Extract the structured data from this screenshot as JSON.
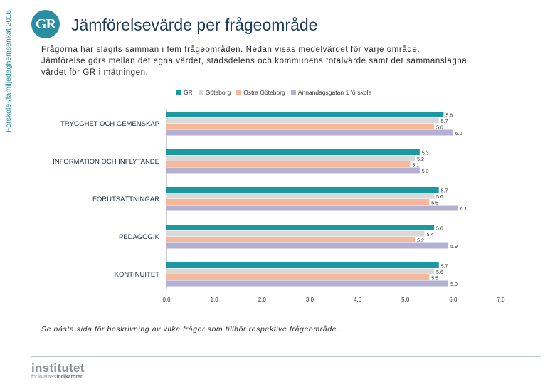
{
  "side_label": "Förskole-/familjedaghemsenkät 2016",
  "logo_text": "GR",
  "title": "Jämförelsevärde per frågeområde",
  "intro_lines": [
    "Frågorna har slagits samman i fem frågeområden. Nedan visas medelvärdet för varje område.",
    "Jämförelse görs mellan det egna värdet, stadsdelens och kommunens totalvärde samt det sammanslagna",
    "värdet för GR i mätningen."
  ],
  "footnote": "Se nästa sida för beskrivning av vilka frågor som tillhör respektive frågeområde.",
  "brand": {
    "name": "institutet",
    "sub_prefix": "för kvalitets",
    "sub_highlight": "indikatorer"
  },
  "chart_data": {
    "type": "bar",
    "orientation": "horizontal",
    "categories": [
      "TRYGGHET OCH GEMENSKAP",
      "INFORMATION OCH INFLYTANDE",
      "FÖRUTSÄTTNINGAR",
      "PEDAGOGIK",
      "KONTINUITET"
    ],
    "series": [
      {
        "name": "GR",
        "color": "#1a9aa0",
        "values": [
          5.8,
          5.3,
          5.7,
          5.6,
          5.7
        ],
        "labels": [
          "5.8",
          "5.3",
          "5.7",
          "5.6",
          "5.7"
        ]
      },
      {
        "name": "Göteborg",
        "color": "#d9d9d9",
        "values": [
          5.7,
          5.2,
          5.6,
          5.4,
          5.6
        ],
        "labels": [
          "5.7",
          "5.2",
          "5.6",
          "5.4",
          "5.6"
        ]
      },
      {
        "name": "Östra Göteborg",
        "color": "#f7b89a",
        "values": [
          5.6,
          5.1,
          5.5,
          5.2,
          5.5
        ],
        "labels": [
          "5.6",
          "5.1",
          "5.5",
          "5.2",
          "5.5"
        ]
      },
      {
        "name": "Annandagsgatan 1 förskola",
        "color": "#b3b0d4",
        "values": [
          6.0,
          5.3,
          6.1,
          5.9,
          5.9
        ],
        "labels": [
          "6.0",
          "5.3",
          "6.1",
          "5.9",
          "5.9"
        ]
      }
    ],
    "xlim": [
      0,
      7
    ],
    "ticks": [
      0,
      1,
      2,
      3,
      4,
      5,
      6,
      7
    ],
    "tick_labels": [
      "0.0",
      "1.0",
      "2.0",
      "3.0",
      "4.0",
      "5.0",
      "6.0",
      "7.0"
    ],
    "legend_position": "top"
  }
}
